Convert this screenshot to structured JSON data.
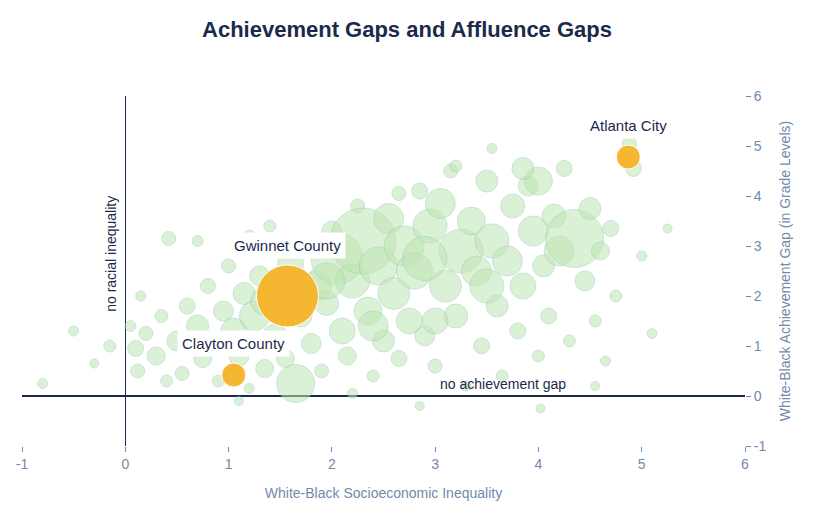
{
  "chart_data": {
    "type": "scatter",
    "title": "Achievement Gaps and Affluence Gaps",
    "xlabel": "White-Black Socioeconomic Inequality",
    "ylabel": "White-Black Achievement Gap (in Grade Levels)",
    "xlim": [
      -1,
      6
    ],
    "ylim": [
      -1,
      6
    ],
    "xticks": [
      -1,
      0,
      1,
      2,
      3,
      4,
      5,
      6
    ],
    "yticks": [
      -1,
      0,
      1,
      2,
      3,
      4,
      5,
      6
    ],
    "grid": false,
    "marker": "bubble",
    "annotations": [
      "no racial inequality",
      "no achievement gap"
    ],
    "series": [
      {
        "color": "#bfe6b4",
        "x": [
          -0.8,
          -0.5,
          -0.3,
          -0.15,
          0.05,
          0.12,
          0.1,
          0.2,
          0.3,
          0.35,
          0.15,
          0.42,
          0.5,
          0.55,
          0.6,
          0.7,
          0.75,
          0.8,
          0.85,
          0.9,
          0.95,
          1.0,
          1.05,
          1.1,
          1.15,
          1.2,
          1.25,
          1.3,
          1.35,
          1.4,
          1.45,
          1.55,
          1.6,
          1.65,
          1.7,
          1.75,
          1.8,
          1.85,
          1.9,
          1.95,
          2.0,
          2.05,
          2.1,
          2.15,
          2.2,
          2.25,
          2.3,
          2.35,
          2.4,
          2.45,
          2.5,
          2.55,
          2.6,
          2.65,
          2.7,
          2.75,
          2.8,
          2.85,
          2.9,
          2.95,
          3.0,
          3.05,
          3.1,
          3.15,
          3.2,
          3.25,
          3.3,
          3.35,
          3.4,
          3.45,
          3.5,
          3.55,
          3.6,
          3.65,
          3.7,
          3.75,
          3.8,
          3.85,
          3.9,
          3.95,
          4.0,
          4.0,
          4.05,
          4.1,
          4.15,
          4.2,
          4.25,
          4.35,
          4.3,
          4.45,
          4.5,
          4.55,
          4.6,
          4.65,
          4.7,
          4.75,
          4.88,
          4.92,
          5.0,
          5.1,
          5.25,
          4.55,
          4.02,
          2.85,
          3.55,
          3.2,
          0.4,
          1.1,
          2.2,
          0.7,
          1.2,
          3.85,
          2.65,
          1.5,
          1.95,
          2.9,
          3.5,
          2.4,
          3.0,
          1.35
        ],
        "y": [
          0.25,
          1.3,
          0.65,
          1.0,
          1.4,
          0.5,
          0.95,
          1.25,
          0.8,
          1.6,
          2.0,
          3.15,
          1.1,
          0.45,
          1.8,
          1.4,
          0.75,
          2.2,
          1.05,
          0.3,
          1.7,
          2.6,
          1.3,
          0.8,
          2.05,
          0.15,
          1.6,
          2.4,
          0.55,
          3.4,
          1.2,
          0.75,
          2.65,
          0.25,
          1.6,
          3.0,
          1.05,
          2.2,
          0.5,
          1.85,
          3.3,
          2.75,
          1.3,
          0.8,
          2.3,
          3.8,
          3.1,
          1.7,
          0.4,
          2.6,
          1.1,
          3.55,
          2.05,
          0.75,
          3.0,
          1.5,
          2.5,
          4.1,
          1.2,
          3.4,
          0.6,
          3.85,
          2.2,
          4.5,
          1.6,
          2.9,
          0.2,
          3.5,
          2.5,
          1.0,
          4.3,
          3.1,
          1.8,
          0.4,
          2.7,
          3.8,
          1.3,
          2.2,
          4.2,
          3.3,
          0.8,
          4.3,
          2.6,
          1.6,
          3.6,
          2.9,
          4.55,
          3.15,
          1.1,
          2.3,
          3.75,
          1.5,
          2.9,
          0.7,
          3.35,
          2.0,
          5.05,
          4.55,
          2.8,
          1.25,
          3.35,
          0.2,
          -0.25,
          -0.2,
          4.95,
          4.6,
          0.3,
          -0.1,
          0.05,
          3.1,
          3.2,
          4.55,
          4.05,
          2.0,
          2.3,
          2.75,
          2.2,
          1.4,
          1.5,
          1.9
        ],
        "size": [
          10,
          10,
          9,
          12,
          11,
          14,
          16,
          14,
          18,
          13,
          10,
          14,
          20,
          14,
          16,
          22,
          18,
          15,
          24,
          12,
          20,
          14,
          26,
          20,
          22,
          10,
          30,
          20,
          18,
          12,
          24,
          18,
          26,
          38,
          22,
          18,
          20,
          30,
          14,
          24,
          20,
          52,
          26,
          18,
          34,
          14,
          66,
          28,
          12,
          38,
          22,
          30,
          32,
          16,
          40,
          26,
          36,
          16,
          20,
          34,
          14,
          30,
          32,
          14,
          24,
          44,
          10,
          28,
          30,
          16,
          22,
          34,
          22,
          12,
          30,
          24,
          16,
          26,
          20,
          30,
          12,
          28,
          22,
          16,
          24,
          30,
          16,
          58,
          12,
          20,
          22,
          12,
          18,
          10,
          16,
          12,
          14,
          16,
          10,
          10,
          9,
          9,
          9,
          9,
          10,
          12,
          12,
          9,
          10,
          11,
          12,
          22,
          14,
          40,
          36,
          44,
          34,
          30,
          26,
          28
        ]
      },
      {
        "color": "#f5b731",
        "labels": [
          "Atlanta City",
          "Gwinnet County",
          "Clayton County"
        ],
        "x": [
          4.87,
          1.57,
          1.05
        ],
        "y": [
          4.78,
          2.0,
          0.42
        ],
        "size": [
          24,
          62,
          24
        ]
      }
    ]
  }
}
